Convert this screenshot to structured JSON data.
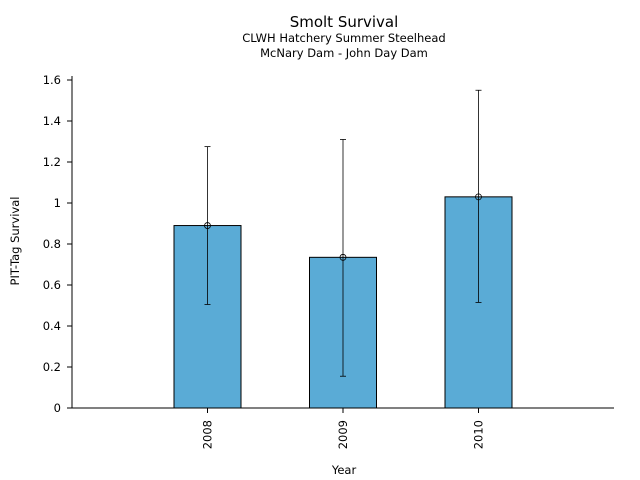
{
  "chart_data": {
    "type": "bar",
    "title": "Smolt Survival",
    "subtitle_lines": [
      "CLWH Hatchery Summer Steelhead",
      "McNary Dam - John Day Dam"
    ],
    "xlabel": "Year",
    "ylabel": "PIT-Tag Survival",
    "categories": [
      "2008",
      "2009",
      "2010"
    ],
    "values": [
      0.89,
      0.735,
      1.03
    ],
    "error_low": [
      0.505,
      0.155,
      0.515
    ],
    "error_high": [
      1.275,
      1.31,
      1.55
    ],
    "ylim": [
      0,
      1.6
    ],
    "yticks": [
      {
        "value": 0,
        "label": "0"
      },
      {
        "value": 0.2,
        "label": "0.2"
      },
      {
        "value": 0.4,
        "label": "0.4"
      },
      {
        "value": 0.6,
        "label": "0.6"
      },
      {
        "value": 0.8,
        "label": "0.8"
      },
      {
        "value": 1.0,
        "label": "1"
      },
      {
        "value": 1.2,
        "label": "1.2"
      },
      {
        "value": 1.4,
        "label": "1.4"
      },
      {
        "value": 1.6,
        "label": "1.6"
      }
    ],
    "bar_color": "#5aabd6",
    "grid": false,
    "legend": "none"
  }
}
